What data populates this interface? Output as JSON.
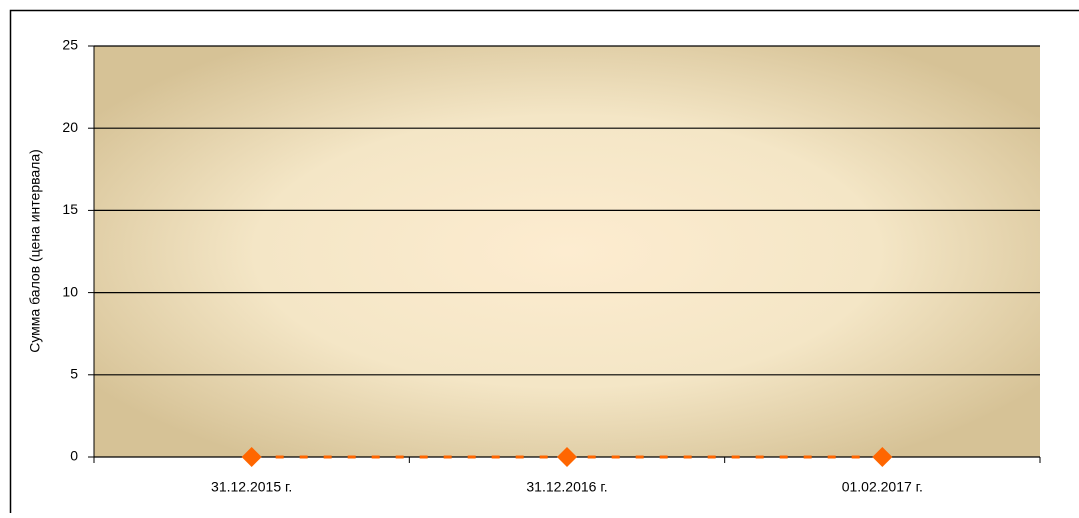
{
  "chart_data": {
    "type": "line",
    "y_label": "Сумма балов (цена интервала)",
    "categories": [
      "31.12.2015 г.",
      "31.12.2016 г.",
      "01.02.2017 г."
    ],
    "series": [
      {
        "color": "#ff6600",
        "values": [
          0,
          0,
          0
        ]
      }
    ],
    "ylim": [
      0,
      25
    ],
    "yticks": [
      0,
      5,
      10,
      15,
      20,
      25
    ],
    "grid": true
  }
}
